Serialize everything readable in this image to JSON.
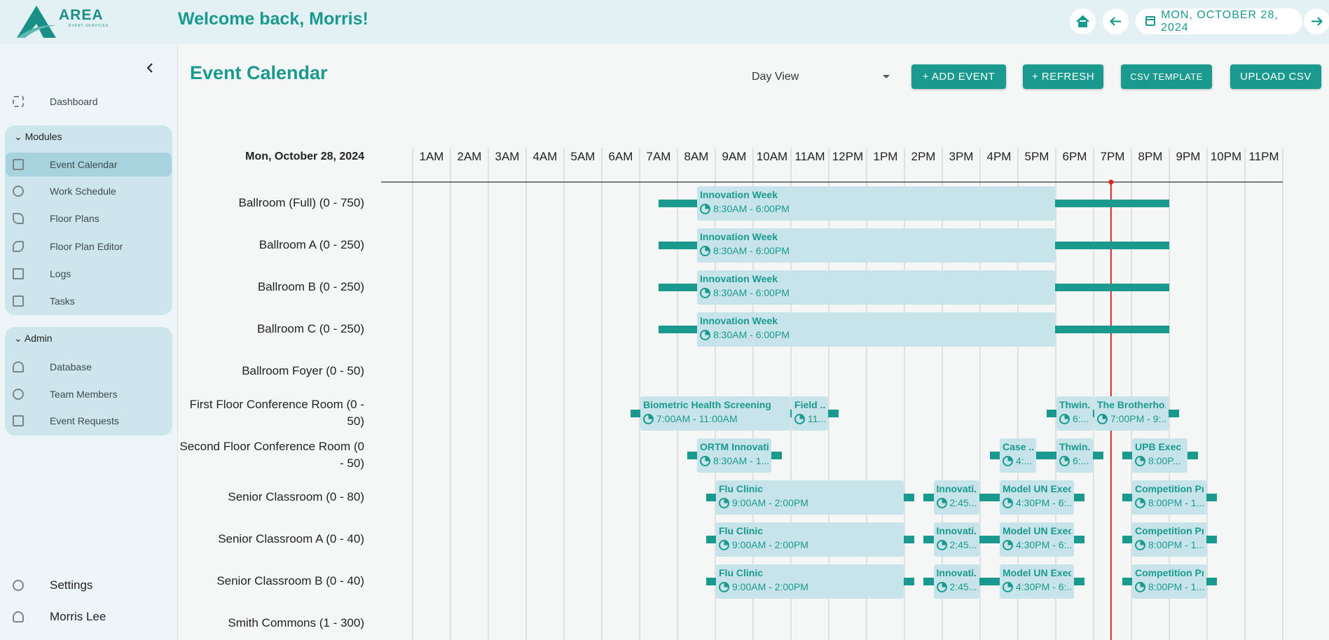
{
  "header": {
    "logo": {
      "title": "AREA",
      "subtitle": "EVENT SERVICES"
    },
    "welcome": "Welcome back, Morris!",
    "date": "MON, OCTOBER 28, 2024"
  },
  "sidebar": {
    "dashboard": "Dashboard",
    "modules": {
      "title": "Modules",
      "items": [
        "Event Calendar",
        "Work Schedule",
        "Floor Plans",
        "Floor Plan Editor",
        "Logs",
        "Tasks"
      ]
    },
    "admin": {
      "title": "Admin",
      "items": [
        "Database",
        "Team Members",
        "Event Requests"
      ]
    },
    "settings": "Settings",
    "user": "Morris Lee"
  },
  "toolbar": {
    "title": "Event Calendar",
    "view": "Day View",
    "buttons": [
      "+ ADD EVENT",
      "+ REFRESH",
      "CSV TEMPLATE",
      "UPLOAD CSV"
    ]
  },
  "calendar": {
    "date": "Mon, October 28, 2024",
    "hours": [
      "1AM",
      "2AM",
      "3AM",
      "4AM",
      "5AM",
      "6AM",
      "7AM",
      "8AM",
      "9AM",
      "10AM",
      "11AM",
      "12PM",
      "1PM",
      "2PM",
      "3PM",
      "4PM",
      "5PM",
      "6PM",
      "7PM",
      "8PM",
      "9PM",
      "10PM",
      "11PM"
    ],
    "rooms": [
      {
        "name": "Ballroom (Full) (0 - 750)",
        "events": [
          {
            "title": "Innovation Week",
            "time": "8:30AM - 6:00PM"
          }
        ]
      },
      {
        "name": "Ballroom A (0 - 250)",
        "events": [
          {
            "title": "Innovation Week",
            "time": "8:30AM - 6:00PM"
          }
        ]
      },
      {
        "name": "Ballroom B (0 - 250)",
        "events": [
          {
            "title": "Innovation Week",
            "time": "8:30AM - 6:00PM"
          }
        ]
      },
      {
        "name": "Ballroom C (0 - 250)",
        "events": [
          {
            "title": "Innovation Week",
            "time": "8:30AM - 6:00PM"
          }
        ]
      },
      {
        "name": "Ballroom Foyer (0 - 50)",
        "events": []
      },
      {
        "name": "First Floor Conference Room (0 - 50)",
        "events": [
          {
            "title": "Biometric Health Screening",
            "time": "7:00AM - 11:00AM"
          },
          {
            "title": "Field ...",
            "time": "11..."
          },
          {
            "title": "Thwin...",
            "time": "6:..."
          },
          {
            "title": "The Brotherho...",
            "time": "7:00PM - 9:..."
          }
        ]
      },
      {
        "name": "Second Floor Conference Room (0 - 50)",
        "events": [
          {
            "title": "ORTM Innovati...",
            "time": "8:30AM - 1..."
          },
          {
            "title": "Case ...",
            "time": "4:..."
          },
          {
            "title": "Thwin...",
            "time": "6:..."
          },
          {
            "title": "UPB Exec ...",
            "time": "8:00P..."
          }
        ]
      },
      {
        "name": "Senior Classroom (0 - 80)",
        "events": [
          {
            "title": "Flu Clinic",
            "time": "9:00AM - 2:00PM"
          },
          {
            "title": "Innovati...",
            "time": "2:45..."
          },
          {
            "title": "Model UN Exec ...",
            "time": "4:30PM - 6:..."
          },
          {
            "title": "Competition Pr...",
            "time": "8:00PM - 1..."
          }
        ]
      },
      {
        "name": "Senior Classroom A (0 - 40)",
        "events": [
          {
            "title": "Flu Clinic",
            "time": "9:00AM - 2:00PM"
          },
          {
            "title": "Innovati...",
            "time": "2:45..."
          },
          {
            "title": "Model UN Exec ...",
            "time": "4:30PM - 6:..."
          },
          {
            "title": "Competition Pr...",
            "time": "8:00PM - 1..."
          }
        ]
      },
      {
        "name": "Senior Classroom B (0 - 40)",
        "events": [
          {
            "title": "Flu Clinic",
            "time": "9:00AM - 2:00PM"
          },
          {
            "title": "Innovati...",
            "time": "2:45..."
          },
          {
            "title": "Model UN Exec ...",
            "time": "4:30PM - 6:..."
          },
          {
            "title": "Competition Pr...",
            "time": "8:00PM - 1..."
          }
        ]
      },
      {
        "name": "Smith Commons (1 - 300)",
        "events": []
      }
    ]
  }
}
